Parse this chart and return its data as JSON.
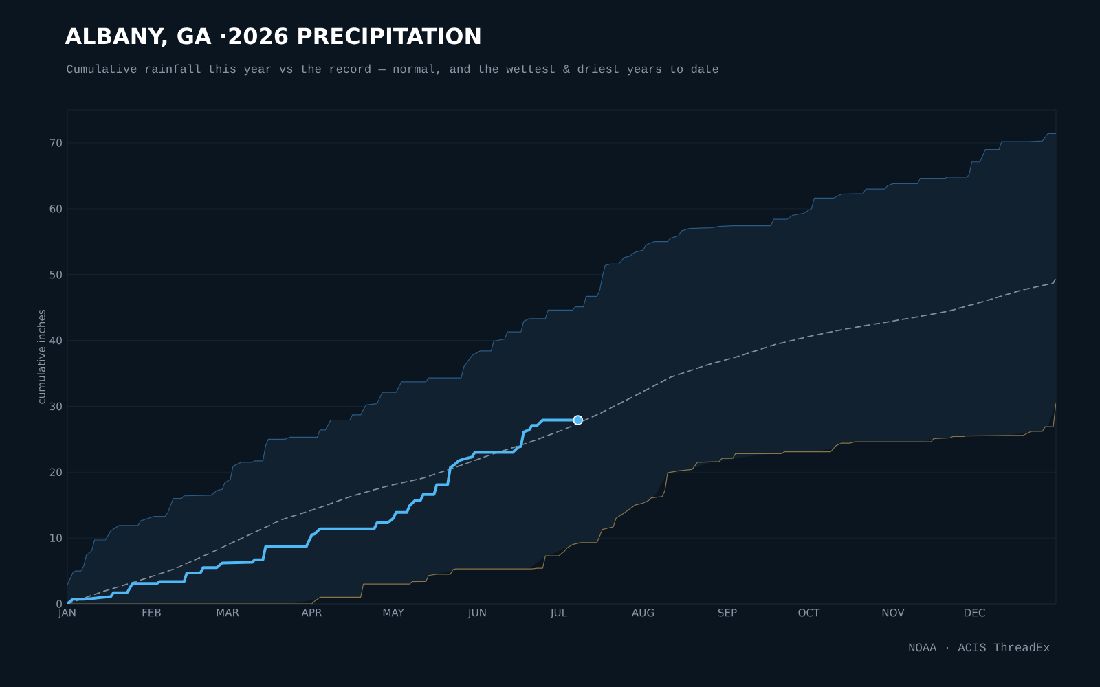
{
  "chart_data": {
    "type": "line",
    "title": "ALBANY, GA ·2026 PRECIPITATION",
    "subtitle": "Cumulative rainfall this year vs the record — normal, and the wettest & driest years to date",
    "ylabel": "cumulative inches",
    "annotations": [
      "NOAA · ACIS ThreadEx"
    ],
    "xlim": [
      "2026-01-01",
      "2026-12-31"
    ],
    "ylim": [
      0,
      75
    ],
    "xticks": [
      {
        "value": "2026-01-01",
        "label": "JAN"
      },
      {
        "value": "2026-02-01",
        "label": "FEB"
      },
      {
        "value": "2026-03-01",
        "label": "MAR"
      },
      {
        "value": "2026-04-01",
        "label": "APR"
      },
      {
        "value": "2026-05-01",
        "label": "MAY"
      },
      {
        "value": "2026-06-01",
        "label": "JUN"
      },
      {
        "value": "2026-07-01",
        "label": "JUL"
      },
      {
        "value": "2026-08-01",
        "label": "AUG"
      },
      {
        "value": "2026-09-01",
        "label": "SEP"
      },
      {
        "value": "2026-10-01",
        "label": "OCT"
      },
      {
        "value": "2026-11-01",
        "label": "NOV"
      },
      {
        "value": "2026-12-01",
        "label": "DEC"
      }
    ],
    "yticks": [
      0,
      10,
      20,
      30,
      40,
      50,
      60,
      70
    ],
    "grid": "y",
    "series": [
      {
        "color": "#2b5b86",
        "lower": [
          0,
          0,
          0,
          0,
          0,
          0,
          0,
          0,
          0,
          0,
          0,
          0,
          0,
          0,
          0,
          0,
          0,
          0,
          0,
          0,
          0,
          0,
          0,
          0,
          0,
          0,
          0,
          0,
          0,
          0,
          0,
          0,
          0,
          0,
          0.7,
          1.0,
          1.0,
          1.0,
          1.0,
          1.0,
          1.0,
          3.0,
          3.0,
          3.0,
          3.0,
          3.0,
          3.0,
          3.4,
          4.3,
          5.3,
          5.3,
          5.3,
          5.3,
          5.3,
          5.3,
          5.3,
          5.3,
          5.3,
          5.3,
          5.3,
          7.3,
          7.3,
          9.0,
          9.1,
          9.3,
          9.3,
          9.3,
          10.3,
          11.3,
          11.4,
          11.6,
          13.3,
          13.8,
          14.4,
          15.0,
          15.3,
          15.5,
          16.2,
          19.9,
          20.0,
          20.2,
          20.2,
          20.4,
          21.5,
          21.6,
          22.1,
          22.8,
          22.8,
          23.1,
          23.1,
          23.1,
          23.1,
          23.1,
          23.1,
          23.6,
          24.4,
          24.6,
          24.6,
          24.6,
          24.6,
          24.6,
          24.6,
          24.6,
          25.2,
          25.2,
          25.5,
          25.5,
          25.5,
          25.5,
          25.5,
          25.5,
          25.5,
          26.0,
          26.2,
          26.9,
          30.5
        ],
        "upper": [
          2.9,
          4.7,
          5.0,
          5.0,
          5.7,
          7.4,
          7.7,
          8.1,
          9.7,
          9.7,
          11.1,
          11.9,
          11.9,
          12.6,
          13.3,
          13.3,
          13.9,
          16.0,
          16.0,
          16.4,
          16.5,
          17.2,
          17.4,
          18.4,
          18.9,
          20.9,
          21.5,
          21.5,
          21.7,
          21.7,
          24.0,
          25.0,
          25.0,
          25.3,
          25.3,
          26.4,
          26.4,
          27.9,
          27.9,
          28.7,
          28.7,
          29.5,
          30.2,
          30.4,
          32.1,
          32.1,
          33.7,
          33.7,
          34.3,
          34.3,
          36.0,
          37.7,
          38.4,
          38.4,
          39.9,
          40.2,
          41.3,
          41.3,
          42.9,
          43.3,
          43.3,
          44.6,
          44.6,
          45.1,
          45.1,
          46.7,
          46.7,
          47.6,
          49.7,
          51.4,
          51.6,
          51.6,
          52.6,
          52.8,
          53.4,
          53.7,
          54.5,
          55.0,
          55.0,
          55.5,
          55.9,
          56.6,
          57.0,
          57.1,
          57.3,
          57.4,
          57.4,
          58.4,
          58.4,
          59.0,
          59.3,
          59.8,
          60.0,
          61.6,
          61.6,
          62.2,
          62.3,
          63.0,
          63.0,
          63.5,
          63.8,
          63.8,
          64.6,
          64.6,
          64.8,
          64.8,
          65.1,
          67.1,
          67.1,
          69.0,
          69.0,
          70.2,
          70.2,
          70.3,
          71.4,
          71.4
        ],
        "x": [
          "2026-01-01",
          "2026-01-03",
          "2026-01-04",
          "2026-01-06",
          "2026-01-07",
          "2026-01-08",
          "2026-01-09",
          "2026-01-10",
          "2026-01-11",
          "2026-01-15",
          "2026-01-17",
          "2026-01-20",
          "2026-01-27",
          "2026-01-28",
          "2026-02-02",
          "2026-02-06",
          "2026-02-07",
          "2026-02-09",
          "2026-02-12",
          "2026-02-13",
          "2026-02-23",
          "2026-02-25",
          "2026-02-27",
          "2026-02-28",
          "2026-03-02",
          "2026-03-03",
          "2026-03-06",
          "2026-03-10",
          "2026-03-11",
          "2026-03-14",
          "2026-03-15",
          "2026-03-16",
          "2026-03-22",
          "2026-03-24",
          "2026-04-03",
          "2026-04-04",
          "2026-04-06",
          "2026-04-08",
          "2026-04-15",
          "2026-04-16",
          "2026-04-19",
          "2026-04-20",
          "2026-04-21",
          "2026-04-25",
          "2026-04-27",
          "2026-05-02",
          "2026-05-04",
          "2026-05-13",
          "2026-05-14",
          "2026-05-26",
          "2026-05-27",
          "2026-05-30",
          "2026-06-02",
          "2026-06-06",
          "2026-06-07",
          "2026-06-11",
          "2026-06-12",
          "2026-06-17",
          "2026-06-18",
          "2026-06-20",
          "2026-06-26",
          "2026-06-27",
          "2026-07-06",
          "2026-07-07",
          "2026-07-10",
          "2026-07-11",
          "2026-07-15",
          "2026-07-16",
          "2026-07-17",
          "2026-07-18",
          "2026-07-20",
          "2026-07-23",
          "2026-07-25",
          "2026-07-27",
          "2026-07-29",
          "2026-08-01",
          "2026-08-02",
          "2026-08-05",
          "2026-08-10",
          "2026-08-11",
          "2026-08-14",
          "2026-08-15",
          "2026-08-18",
          "2026-08-26",
          "2026-08-29",
          "2026-09-03",
          "2026-09-17",
          "2026-09-18",
          "2026-09-23",
          "2026-09-25",
          "2026-09-29",
          "2026-10-01",
          "2026-10-02",
          "2026-10-03",
          "2026-10-10",
          "2026-10-13",
          "2026-10-21",
          "2026-10-22",
          "2026-10-29",
          "2026-10-30",
          "2026-11-01",
          "2026-11-10",
          "2026-11-11",
          "2026-11-20",
          "2026-11-21",
          "2026-11-28",
          "2026-11-29",
          "2026-11-30",
          "2026-12-03",
          "2026-12-05",
          "2026-12-10",
          "2026-12-11",
          "2026-12-21",
          "2026-12-26",
          "2026-12-28",
          "2026-12-31"
        ],
        "values": [
          2.9,
          4.7,
          5.0,
          5.0,
          5.7,
          7.4,
          7.7,
          8.1,
          9.7,
          9.7,
          11.1,
          11.9,
          11.9,
          12.6,
          13.3,
          13.3,
          13.9,
          16.0,
          16.0,
          16.4,
          16.5,
          17.2,
          17.4,
          18.4,
          18.9,
          20.9,
          21.5,
          21.5,
          21.7,
          21.7,
          24.0,
          25.0,
          25.0,
          25.3,
          25.3,
          26.4,
          26.4,
          27.9,
          27.9,
          28.7,
          28.7,
          29.5,
          30.2,
          30.4,
          32.1,
          32.1,
          33.7,
          33.7,
          34.3,
          34.3,
          36.0,
          37.7,
          38.4,
          38.4,
          39.9,
          40.2,
          41.3,
          41.3,
          42.9,
          43.3,
          43.3,
          44.6,
          44.6,
          45.1,
          45.1,
          46.7,
          46.7,
          47.6,
          49.7,
          51.4,
          51.6,
          51.6,
          52.6,
          52.8,
          53.4,
          53.7,
          54.5,
          55.0,
          55.0,
          55.5,
          55.9,
          56.6,
          57.0,
          57.1,
          57.3,
          57.4,
          57.4,
          58.4,
          58.4,
          59.0,
          59.3,
          59.8,
          60.0,
          61.6,
          61.6,
          62.2,
          62.3,
          63.0,
          63.0,
          63.5,
          63.8,
          63.8,
          64.6,
          64.6,
          64.8,
          64.8,
          65.1,
          67.1,
          67.1,
          69.0,
          69.0,
          70.2,
          70.2,
          70.3,
          71.4,
          71.4
        ]
      },
      {
        "color": "#8a7548",
        "x": [
          "2026-01-01",
          "2026-04-01",
          "2026-04-02",
          "2026-04-04",
          "2026-04-19",
          "2026-04-20",
          "2026-05-07",
          "2026-05-08",
          "2026-05-13",
          "2026-05-14",
          "2026-05-17",
          "2026-05-22",
          "2026-05-23",
          "2026-05-24",
          "2026-06-21",
          "2026-06-23",
          "2026-06-25",
          "2026-06-26",
          "2026-07-01",
          "2026-07-03",
          "2026-07-04",
          "2026-07-06",
          "2026-07-09",
          "2026-07-15",
          "2026-07-17",
          "2026-07-19",
          "2026-07-21",
          "2026-07-22",
          "2026-07-25",
          "2026-07-29",
          "2026-08-01",
          "2026-08-03",
          "2026-08-04",
          "2026-08-08",
          "2026-08-09",
          "2026-08-10",
          "2026-08-14",
          "2026-08-19",
          "2026-08-21",
          "2026-08-29",
          "2026-08-30",
          "2026-09-03",
          "2026-09-04",
          "2026-09-21",
          "2026-09-22",
          "2026-10-09",
          "2026-10-11",
          "2026-10-13",
          "2026-10-16",
          "2026-10-18",
          "2026-11-15",
          "2026-11-16",
          "2026-11-22",
          "2026-11-23",
          "2026-11-27",
          "2026-11-28",
          "2026-12-19",
          "2026-12-22",
          "2026-12-26",
          "2026-12-27",
          "2026-12-30",
          "2026-12-31"
        ],
        "values": [
          0,
          0,
          0.4,
          1.0,
          1.0,
          3.0,
          3.0,
          3.4,
          3.4,
          4.3,
          4.5,
          4.5,
          5.2,
          5.3,
          5.3,
          5.4,
          5.4,
          7.3,
          7.3,
          8.0,
          8.5,
          9.0,
          9.3,
          9.3,
          11.3,
          11.5,
          11.7,
          13.0,
          13.8,
          15.0,
          15.3,
          15.7,
          16.1,
          16.3,
          17.2,
          19.9,
          20.2,
          20.4,
          21.5,
          21.6,
          22.1,
          22.1,
          22.8,
          22.8,
          23.1,
          23.1,
          24.0,
          24.4,
          24.4,
          24.6,
          24.6,
          25.1,
          25.2,
          25.4,
          25.4,
          25.5,
          25.6,
          26.2,
          26.2,
          26.9,
          26.9,
          30.5
        ]
      },
      {
        "color": "#7f8d9c",
        "line_style": "dashed",
        "x": [
          "2026-01-01",
          "2026-01-15",
          "2026-01-28",
          "2026-02-10",
          "2026-02-23",
          "2026-03-08",
          "2026-03-21",
          "2026-04-03",
          "2026-04-16",
          "2026-04-29",
          "2026-05-12",
          "2026-05-25",
          "2026-06-07",
          "2026-06-20",
          "2026-07-03",
          "2026-07-16",
          "2026-07-29",
          "2026-08-11",
          "2026-08-24",
          "2026-09-06",
          "2026-09-18",
          "2026-10-01",
          "2026-10-14",
          "2026-10-27",
          "2026-11-09",
          "2026-11-22",
          "2026-12-05",
          "2026-12-18",
          "2026-12-30",
          "2026-12-31"
        ],
        "values": [
          0,
          2.0,
          3.6,
          5.4,
          7.8,
          10.3,
          12.8,
          14.5,
          16.4,
          17.9,
          19.1,
          20.9,
          22.8,
          24.5,
          26.5,
          28.9,
          31.6,
          34.4,
          36.2,
          37.7,
          39.3,
          40.6,
          41.7,
          42.6,
          43.5,
          44.5,
          46.0,
          47.6,
          48.7,
          49.5
        ]
      },
      {
        "color": "#4fb8f5",
        "x": [
          "2026-01-01",
          "2026-01-03",
          "2026-01-07",
          "2026-01-10",
          "2026-01-14",
          "2026-01-17",
          "2026-01-18",
          "2026-01-23",
          "2026-01-25",
          "2026-02-03",
          "2026-02-04",
          "2026-02-13",
          "2026-02-14",
          "2026-02-19",
          "2026-02-20",
          "2026-02-25",
          "2026-02-27",
          "2026-03-10",
          "2026-03-11",
          "2026-03-14",
          "2026-03-15",
          "2026-03-30",
          "2026-04-01",
          "2026-04-02",
          "2026-04-04",
          "2026-04-24",
          "2026-04-25",
          "2026-04-29",
          "2026-05-01",
          "2026-05-02",
          "2026-05-06",
          "2026-05-07",
          "2026-05-09",
          "2026-05-11",
          "2026-05-12",
          "2026-05-16",
          "2026-05-17",
          "2026-05-21",
          "2026-05-22",
          "2026-05-24",
          "2026-05-25",
          "2026-05-27",
          "2026-05-30",
          "2026-05-31",
          "2026-06-14",
          "2026-06-16",
          "2026-06-17",
          "2026-06-18",
          "2026-06-20",
          "2026-06-21",
          "2026-06-23",
          "2026-06-25",
          "2026-07-08"
        ],
        "values": [
          0,
          0.7,
          0.7,
          0.8,
          1.0,
          1.1,
          1.7,
          1.7,
          3.1,
          3.1,
          3.4,
          3.4,
          4.7,
          4.7,
          5.5,
          5.5,
          6.2,
          6.3,
          6.7,
          6.7,
          8.7,
          8.7,
          10.5,
          10.6,
          11.4,
          11.4,
          12.3,
          12.3,
          13.0,
          13.9,
          13.9,
          14.9,
          15.7,
          15.7,
          16.6,
          16.6,
          18.1,
          18.1,
          20.7,
          21.3,
          21.7,
          22.0,
          22.3,
          23.0,
          23.0,
          23.8,
          23.9,
          26.1,
          26.4,
          27.1,
          27.1,
          27.9,
          27.9
        ]
      },
      {
        "type": "scatter",
        "marker": "circle",
        "color": "#4fb8f5",
        "x": [
          "2026-07-08"
        ],
        "values": [
          27.9
        ]
      }
    ]
  }
}
